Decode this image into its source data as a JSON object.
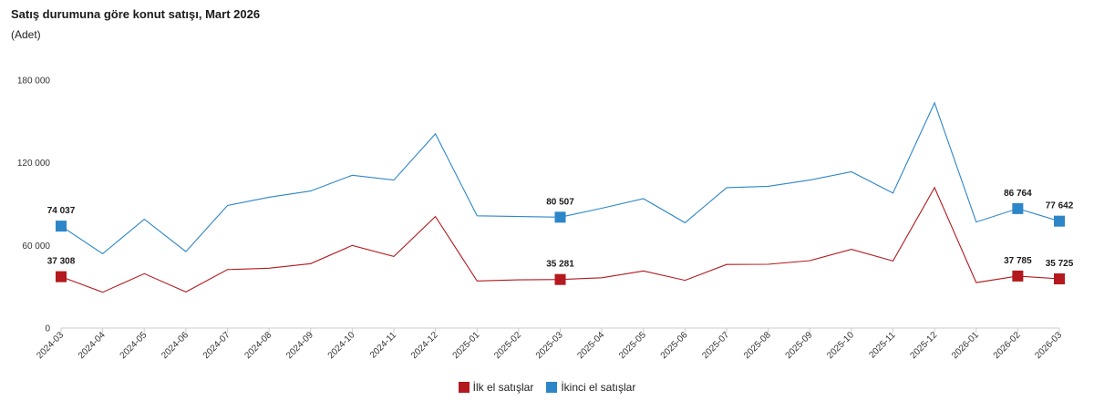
{
  "chart_data": {
    "type": "line",
    "title": "Satış durumuna göre konut satışı, Mart 2026",
    "subtitle": "(Adet)",
    "xlabel": "",
    "ylabel": "",
    "ylim": [
      0,
      180000
    ],
    "yticks": [
      {
        "value": 0,
        "label": "0"
      },
      {
        "value": 60000,
        "label": "60 000"
      },
      {
        "value": 120000,
        "label": "120 000"
      },
      {
        "value": 180000,
        "label": "180 000"
      }
    ],
    "grid": false,
    "legend_position": "bottom",
    "categories": [
      "2024-03",
      "2024-04",
      "2024-05",
      "2024-06",
      "2024-07",
      "2024-08",
      "2024-09",
      "2024-10",
      "2024-11",
      "2024-12",
      "2025-01",
      "2025-02",
      "2025-03",
      "2025-04",
      "2025-05",
      "2025-06",
      "2025-07",
      "2025-08",
      "2025-09",
      "2025-10",
      "2025-11",
      "2025-12",
      "2026-01",
      "2026-02",
      "2026-03"
    ],
    "series": [
      {
        "name": "İlk el satışlar",
        "color": "#b3191e",
        "values": [
          37308,
          26000,
          39500,
          26200,
          42500,
          43500,
          46800,
          60000,
          52000,
          81000,
          34200,
          35000,
          35281,
          36500,
          41500,
          34700,
          46200,
          46300,
          49000,
          57200,
          48700,
          102000,
          33000,
          37785,
          35725
        ],
        "labels": [
          {
            "index": 0,
            "text": "37 308"
          },
          {
            "index": 12,
            "text": "35 281"
          },
          {
            "index": 23,
            "text": "37 785"
          },
          {
            "index": 24,
            "text": "35 725"
          }
        ]
      },
      {
        "name": "İkinci el satışlar",
        "color": "#2c86c8",
        "values": [
          74037,
          54000,
          79000,
          55500,
          89000,
          95000,
          99500,
          111000,
          107500,
          141000,
          81500,
          81000,
          80507,
          87000,
          94000,
          76500,
          102000,
          103000,
          107500,
          113500,
          98000,
          163500,
          77000,
          86764,
          77642
        ],
        "labels": [
          {
            "index": 0,
            "text": "74 037"
          },
          {
            "index": 12,
            "text": "80 507"
          },
          {
            "index": 23,
            "text": "86 764"
          },
          {
            "index": 24,
            "text": "77 642"
          }
        ]
      }
    ]
  }
}
